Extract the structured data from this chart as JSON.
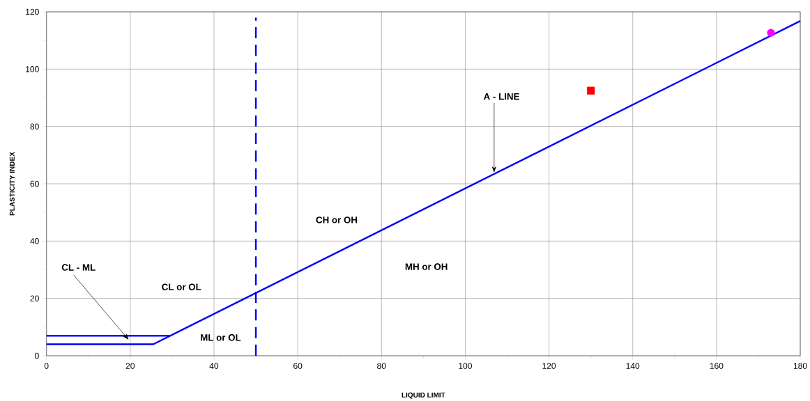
{
  "chart_data": {
    "type": "line",
    "xlabel": "LIQUID LIMIT",
    "ylabel": "PLASTICITY INDEX",
    "xlim": [
      0,
      180
    ],
    "ylim": [
      0,
      120
    ],
    "xticks": [
      0,
      20,
      40,
      60,
      80,
      100,
      120,
      140,
      160,
      180
    ],
    "yticks": [
      0,
      20,
      40,
      60,
      80,
      100,
      120
    ],
    "grid": true,
    "series": [
      {
        "color": "#0000ff",
        "x": [
          0,
          25.5,
          180
        ],
        "values": [
          4,
          4,
          116.8
        ],
        "line_style": "solid"
      },
      {
        "color": "#0000ff",
        "x": [
          0,
          29.6
        ],
        "values": [
          7,
          7
        ],
        "line_style": "solid"
      },
      {
        "color": "#0000ff",
        "x": [
          50,
          50
        ],
        "values": [
          0,
          118
        ],
        "line_style": "dashed"
      },
      {
        "type": "scatter",
        "color": "#ff0000",
        "x": [
          130
        ],
        "values": [
          92.5
        ],
        "marker": "square"
      },
      {
        "type": "scatter",
        "color": "#ff00ff",
        "x": [
          173
        ],
        "values": [
          112.7
        ],
        "marker": "circle"
      }
    ],
    "annotations": [
      "CL - ML",
      "CL or OL",
      "ML or OL",
      "CH or OH",
      "MH or OH",
      {
        "text": "A - LINE",
        "x": 106.9,
        "y": 63.9
      }
    ]
  }
}
